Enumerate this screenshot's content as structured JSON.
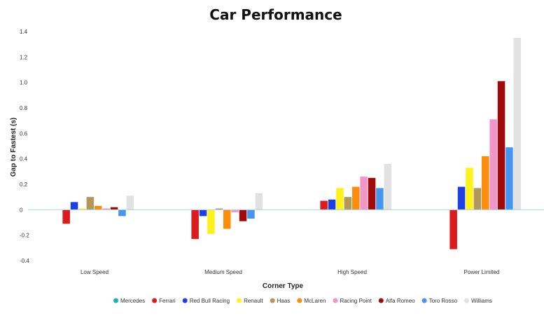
{
  "chart_data": {
    "type": "bar",
    "title": "Car Performance",
    "xlabel": "Corner Type",
    "ylabel": "Gap to Fastest (s)",
    "ylim": [
      -0.4,
      1.4
    ],
    "yticks": [
      "1.4",
      "1.2",
      "1.0",
      "0.8",
      "0.6",
      "0.4",
      "0.2",
      "0",
      "-0.2",
      "-0.4"
    ],
    "categories": [
      "Low Speed",
      "Medium Speed",
      "High Speed",
      "Power Limited"
    ],
    "legend_position": "bottom",
    "series": [
      {
        "name": "Mercedes",
        "color": "#19b6a8",
        "values": [
          0,
          0,
          0,
          0
        ]
      },
      {
        "name": "Ferrari",
        "color": "#dc1c1c",
        "values": [
          -0.11,
          -0.23,
          0.07,
          -0.31
        ]
      },
      {
        "name": "Red Bull Racing",
        "color": "#1e3ee6",
        "values": [
          0.06,
          -0.05,
          0.08,
          0.18
        ]
      },
      {
        "name": "Renault",
        "color": "#fff21a",
        "values": [
          0.01,
          -0.19,
          0.17,
          0.33
        ]
      },
      {
        "name": "Haas",
        "color": "#b4975a",
        "values": [
          0.1,
          0.01,
          0.1,
          0.17
        ]
      },
      {
        "name": "McLaren",
        "color": "#ff8c0a",
        "values": [
          0.03,
          -0.15,
          0.18,
          0.42
        ]
      },
      {
        "name": "Racing Point",
        "color": "#f096c8",
        "values": [
          0.01,
          -0.02,
          0.26,
          0.71
        ]
      },
      {
        "name": "Alfa Romeo",
        "color": "#a00a0a",
        "values": [
          0.02,
          -0.09,
          0.25,
          1.01
        ]
      },
      {
        "name": "Toro Rosso",
        "color": "#4696f0",
        "values": [
          -0.05,
          -0.07,
          0.17,
          0.49
        ]
      },
      {
        "name": "Williams",
        "color": "#e1e1e1",
        "values": [
          0.11,
          0.13,
          0.36,
          1.35
        ]
      }
    ]
  }
}
